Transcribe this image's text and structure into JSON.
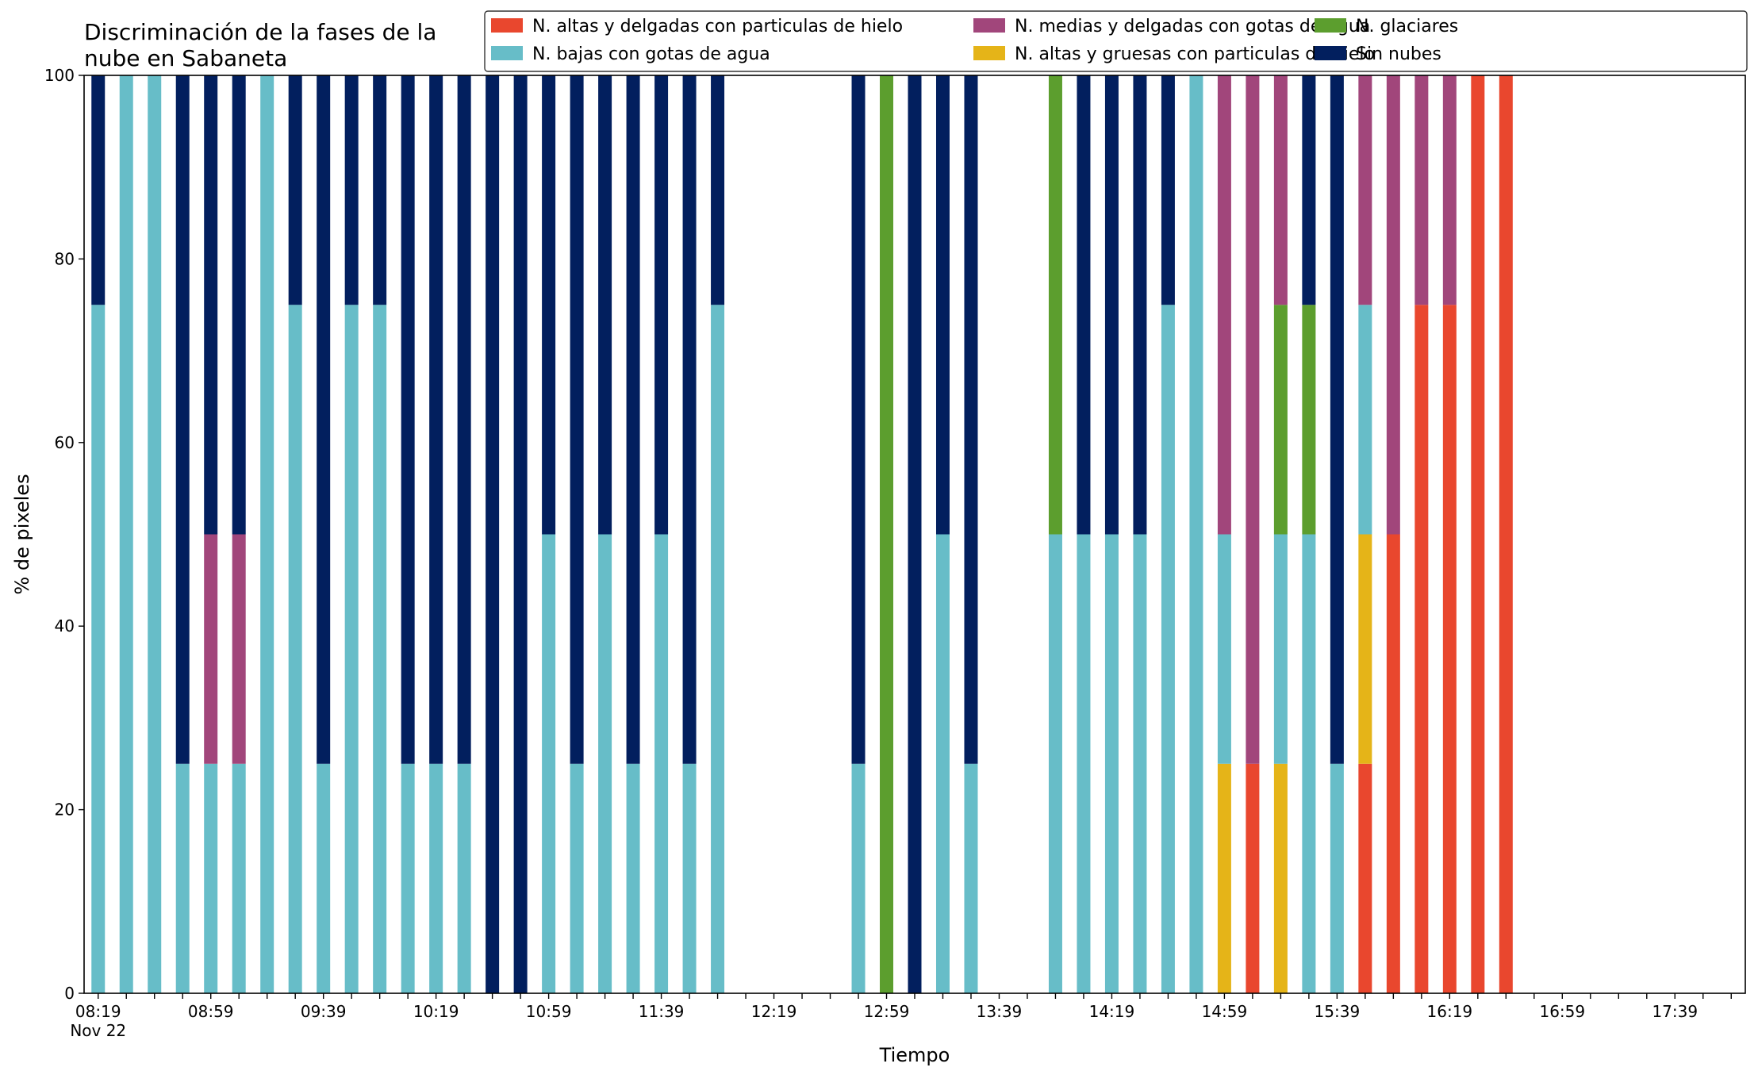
{
  "chart_data": {
    "type": "bar",
    "stacked": true,
    "title": "Discriminación de la fases de la\nnube en Sabaneta",
    "xlabel": "Tiempo",
    "ylabel": "% de pixeles",
    "ylim": [
      0,
      100
    ],
    "yticks": [
      0,
      20,
      40,
      60,
      80,
      100
    ],
    "xlim": [
      "08:14",
      "18:04"
    ],
    "date_label": "Nov 22",
    "xtick_labels": [
      "08:19",
      "08:59",
      "09:39",
      "10:19",
      "10:59",
      "11:39",
      "12:19",
      "12:59",
      "13:39",
      "14:19",
      "14:59",
      "15:39",
      "16:19",
      "16:59",
      "17:39"
    ],
    "grid": false,
    "legend_position": "top-right",
    "series": [
      {
        "name": "N. altas y delgadas con particulas de hielo",
        "color": "#e9472e"
      },
      {
        "name": "N. altas y gruesas con particulas de hielo",
        "color": "#e5b418"
      },
      {
        "name": "N. bajas con gotas de agua",
        "color": "#67bdc8"
      },
      {
        "name": "N. glaciares",
        "color": "#5c9e2e"
      },
      {
        "name": "N. medias y delgadas con gotas de agua",
        "color": "#a1467b"
      },
      {
        "name": "Sin nubes",
        "color": "#021f5e"
      }
    ],
    "legend_order": [
      0,
      2,
      4,
      1,
      3,
      5
    ],
    "stack_order": [
      0,
      1,
      2,
      3,
      4,
      5
    ],
    "x": [
      "08:19",
      "08:29",
      "08:39",
      "08:49",
      "08:59",
      "09:09",
      "09:19",
      "09:29",
      "09:39",
      "09:49",
      "09:59",
      "10:09",
      "10:19",
      "10:29",
      "10:39",
      "10:49",
      "10:59",
      "11:09",
      "11:19",
      "11:29",
      "11:39",
      "11:49",
      "11:59",
      "12:49",
      "12:59",
      "13:09",
      "13:19",
      "13:29",
      "13:59",
      "14:09",
      "14:19",
      "14:29",
      "14:39",
      "14:49",
      "14:59",
      "15:09",
      "15:19",
      "15:29",
      "15:39",
      "15:49",
      "15:59",
      "16:09",
      "16:19",
      "16:29",
      "16:39"
    ],
    "values": [
      [
        0,
        0,
        75,
        0,
        0,
        25
      ],
      [
        0,
        0,
        100,
        0,
        0,
        0
      ],
      [
        0,
        0,
        100,
        0,
        0,
        0
      ],
      [
        0,
        0,
        25,
        0,
        0,
        75
      ],
      [
        0,
        0,
        25,
        0,
        25,
        50
      ],
      [
        0,
        0,
        25,
        0,
        25,
        50
      ],
      [
        0,
        0,
        100,
        0,
        0,
        0
      ],
      [
        0,
        0,
        75,
        0,
        0,
        25
      ],
      [
        0,
        0,
        25,
        0,
        0,
        75
      ],
      [
        0,
        0,
        75,
        0,
        0,
        25
      ],
      [
        0,
        0,
        75,
        0,
        0,
        25
      ],
      [
        0,
        0,
        25,
        0,
        0,
        75
      ],
      [
        0,
        0,
        25,
        0,
        0,
        75
      ],
      [
        0,
        0,
        25,
        0,
        0,
        75
      ],
      [
        0,
        0,
        0,
        0,
        0,
        100
      ],
      [
        0,
        0,
        0,
        0,
        0,
        100
      ],
      [
        0,
        0,
        50,
        0,
        0,
        50
      ],
      [
        0,
        0,
        25,
        0,
        0,
        75
      ],
      [
        0,
        0,
        50,
        0,
        0,
        50
      ],
      [
        0,
        0,
        25,
        0,
        0,
        75
      ],
      [
        0,
        0,
        50,
        0,
        0,
        50
      ],
      [
        0,
        0,
        25,
        0,
        0,
        75
      ],
      [
        0,
        0,
        75,
        0,
        0,
        25
      ],
      [
        0,
        0,
        25,
        0,
        0,
        75
      ],
      [
        0,
        0,
        0,
        100,
        0,
        0
      ],
      [
        0,
        0,
        0,
        0,
        0,
        100
      ],
      [
        0,
        0,
        50,
        0,
        0,
        50
      ],
      [
        0,
        0,
        25,
        0,
        0,
        75
      ],
      [
        0,
        0,
        50,
        50,
        0,
        0
      ],
      [
        0,
        0,
        50,
        0,
        0,
        50
      ],
      [
        0,
        0,
        50,
        0,
        0,
        50
      ],
      [
        0,
        0,
        50,
        0,
        0,
        50
      ],
      [
        0,
        0,
        75,
        0,
        0,
        25
      ],
      [
        0,
        0,
        100,
        0,
        0,
        0
      ],
      [
        0,
        25,
        25,
        0,
        50,
        0
      ],
      [
        25,
        0,
        0,
        0,
        75,
        0
      ],
      [
        0,
        25,
        25,
        25,
        25,
        0
      ],
      [
        0,
        0,
        50,
        25,
        0,
        25
      ],
      [
        0,
        0,
        25,
        0,
        0,
        75
      ],
      [
        25,
        25,
        25,
        0,
        25,
        0
      ],
      [
        50,
        0,
        0,
        0,
        50,
        0
      ],
      [
        75,
        0,
        0,
        0,
        25,
        0
      ],
      [
        75,
        0,
        0,
        0,
        25,
        0
      ],
      [
        100,
        0,
        0,
        0,
        0,
        0
      ],
      [
        100,
        0,
        0,
        0,
        0,
        0
      ]
    ]
  }
}
